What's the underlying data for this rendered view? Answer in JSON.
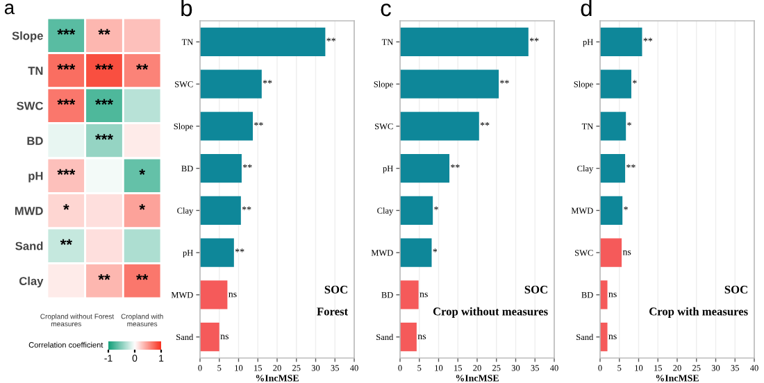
{
  "chart_data": [
    {
      "type": "heatmap",
      "title": "a",
      "categories": [
        "Cropland without\nmeasures",
        "Forest",
        "Cropland with\nmeasures"
      ],
      "y_categories": [
        "Slope",
        "TN",
        "SWC",
        "BD",
        "pH",
        "MWD",
        "Sand",
        "Clay"
      ],
      "cells": [
        [
          -0.7,
          0.35,
          0.3
        ],
        [
          0.7,
          0.85,
          0.6
        ],
        [
          0.65,
          -0.75,
          -0.3
        ],
        [
          -0.1,
          -0.45,
          0.1
        ],
        [
          0.3,
          -0.05,
          -0.65
        ],
        [
          0.2,
          0.15,
          0.45
        ],
        [
          -0.25,
          0.15,
          -0.35
        ],
        [
          0.1,
          0.35,
          0.65
        ]
      ],
      "cell_labels": [
        [
          "***",
          "**",
          null
        ],
        [
          "***",
          "***",
          "**"
        ],
        [
          "***",
          "***",
          null
        ],
        [
          null,
          "***",
          null
        ],
        [
          "***",
          null,
          "*"
        ],
        [
          "*",
          null,
          "*"
        ],
        [
          "**",
          null,
          null
        ],
        [
          null,
          "**",
          "**"
        ]
      ],
      "clim": [
        -1,
        1
      ],
      "cticks": [
        -1,
        0,
        1
      ],
      "clabel": "Correlation coefficient"
    },
    {
      "type": "bar",
      "orientation": "horizontal",
      "title": "b",
      "categories": [
        "TN",
        "SWC",
        "Slope",
        "BD",
        "Clay",
        "pH",
        "MWD",
        "Sand"
      ],
      "values": [
        32.5,
        16,
        13.7,
        10.8,
        10.6,
        8.8,
        7.1,
        5
      ],
      "colors": [
        "#0e8799",
        "#0e8799",
        "#0e8799",
        "#0e8799",
        "#0e8799",
        "#0e8799",
        "#f55a5a",
        "#f55a5a"
      ],
      "value_labels": [
        "**",
        "**",
        "**",
        "**",
        "**",
        "**",
        "ns",
        "ns"
      ],
      "xlabel": "%IncMSE",
      "xlim": [
        0,
        40
      ],
      "xticks": [
        0,
        5,
        10,
        15,
        20,
        25,
        30,
        35,
        40
      ],
      "grid": "x",
      "annotations": [
        "SOC",
        "Forest"
      ]
    },
    {
      "type": "bar",
      "orientation": "horizontal",
      "title": "c",
      "categories": [
        "TN",
        "Slope",
        "SWC",
        "pH",
        "Clay",
        "MWD",
        "BD",
        "Sand"
      ],
      "values": [
        33.3,
        25.6,
        20.5,
        12.8,
        8.5,
        8.2,
        4.8,
        4.3
      ],
      "colors": [
        "#0e8799",
        "#0e8799",
        "#0e8799",
        "#0e8799",
        "#0e8799",
        "#0e8799",
        "#f55a5a",
        "#f55a5a"
      ],
      "value_labels": [
        "**",
        "**",
        "**",
        "**",
        "*",
        "*",
        "ns",
        "ns"
      ],
      "xlabel": "%IncMSE",
      "xlim": [
        0,
        40
      ],
      "xticks": [
        0,
        5,
        10,
        15,
        20,
        25,
        30,
        35,
        40
      ],
      "grid": "x",
      "annotations": [
        "SOC",
        "Crop without measures"
      ]
    },
    {
      "type": "bar",
      "orientation": "horizontal",
      "title": "d",
      "categories": [
        "pH",
        "Slope",
        "TN",
        "Clay",
        "MWD",
        "SWC",
        "BD",
        "Sand"
      ],
      "values": [
        10.9,
        8.1,
        6.7,
        6.5,
        5.8,
        5.6,
        1.9,
        1.9
      ],
      "colors": [
        "#0e8799",
        "#0e8799",
        "#0e8799",
        "#0e8799",
        "#0e8799",
        "#f55a5a",
        "#f55a5a",
        "#f55a5a"
      ],
      "value_labels": [
        "**",
        "*",
        "*",
        "**",
        "*",
        "ns",
        "ns",
        "ns"
      ],
      "xlabel": "%IncMSE",
      "xlim": [
        0,
        40
      ],
      "xticks": [
        0,
        5,
        10,
        15,
        20,
        25,
        30,
        35,
        40
      ],
      "grid": "x",
      "annotations": [
        "SOC",
        "Crop with measures"
      ]
    }
  ]
}
